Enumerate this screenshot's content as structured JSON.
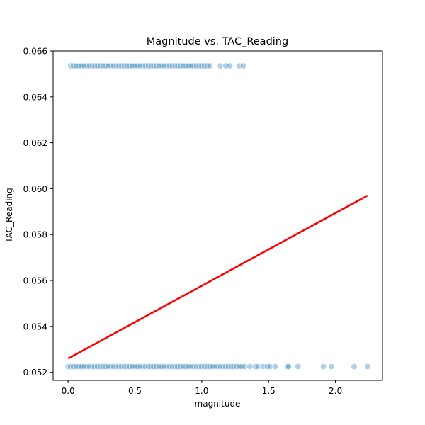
{
  "chart_data": {
    "type": "scatter",
    "title": "Magnitude vs. TAC_Reading",
    "xlabel": "magnitude",
    "ylabel": "TAC_Reading",
    "xlim": [
      -0.112,
      2.352
    ],
    "ylim": [
      0.05165,
      0.066
    ],
    "xticks": [
      0.0,
      0.5,
      1.0,
      1.5,
      2.0
    ],
    "xtick_labels": [
      "0.0",
      "0.5",
      "1.0",
      "1.5",
      "2.0"
    ],
    "yticks": [
      0.052,
      0.054,
      0.056,
      0.058,
      0.06,
      0.062,
      0.064,
      0.066
    ],
    "ytick_labels": [
      "0.052",
      "0.054",
      "0.056",
      "0.058",
      "0.060",
      "0.062",
      "0.064",
      "0.066"
    ],
    "grid": false,
    "marker_color": "#1f77b4",
    "regression_color": "#ff0000",
    "series": [
      {
        "y": 0.06535,
        "x": [
          0.02,
          0.04,
          0.06,
          0.08,
          0.1,
          0.12,
          0.14,
          0.16,
          0.18,
          0.2,
          0.22,
          0.24,
          0.26,
          0.28,
          0.3,
          0.32,
          0.34,
          0.36,
          0.38,
          0.4,
          0.42,
          0.44,
          0.46,
          0.48,
          0.5,
          0.52,
          0.54,
          0.56,
          0.58,
          0.6,
          0.62,
          0.64,
          0.66,
          0.68,
          0.7,
          0.72,
          0.74,
          0.76,
          0.78,
          0.8,
          0.82,
          0.84,
          0.86,
          0.88,
          0.9,
          0.92,
          0.94,
          0.96,
          0.98,
          1.0,
          1.02,
          1.04,
          1.06,
          1.14,
          1.18,
          1.21,
          1.28,
          1.31
        ]
      },
      {
        "y": 0.05225,
        "x": [
          0.0,
          0.02,
          0.04,
          0.06,
          0.08,
          0.1,
          0.12,
          0.14,
          0.16,
          0.18,
          0.2,
          0.22,
          0.24,
          0.26,
          0.28,
          0.3,
          0.32,
          0.34,
          0.36,
          0.38,
          0.4,
          0.42,
          0.44,
          0.46,
          0.48,
          0.5,
          0.52,
          0.54,
          0.56,
          0.58,
          0.6,
          0.62,
          0.64,
          0.66,
          0.68,
          0.7,
          0.72,
          0.74,
          0.76,
          0.78,
          0.8,
          0.82,
          0.84,
          0.86,
          0.88,
          0.9,
          0.92,
          0.94,
          0.96,
          0.98,
          1.0,
          1.02,
          1.04,
          1.06,
          1.08,
          1.1,
          1.12,
          1.14,
          1.16,
          1.18,
          1.2,
          1.22,
          1.24,
          1.26,
          1.28,
          1.3,
          1.32,
          1.36,
          1.4,
          1.42,
          1.46,
          1.49,
          1.51,
          1.55,
          1.64,
          1.65,
          1.72,
          1.91,
          1.97,
          2.14,
          2.24
        ]
      }
    ],
    "regression_line": {
      "x": [
        0.0,
        2.24
      ],
      "y": [
        0.0526,
        0.0597
      ]
    }
  }
}
